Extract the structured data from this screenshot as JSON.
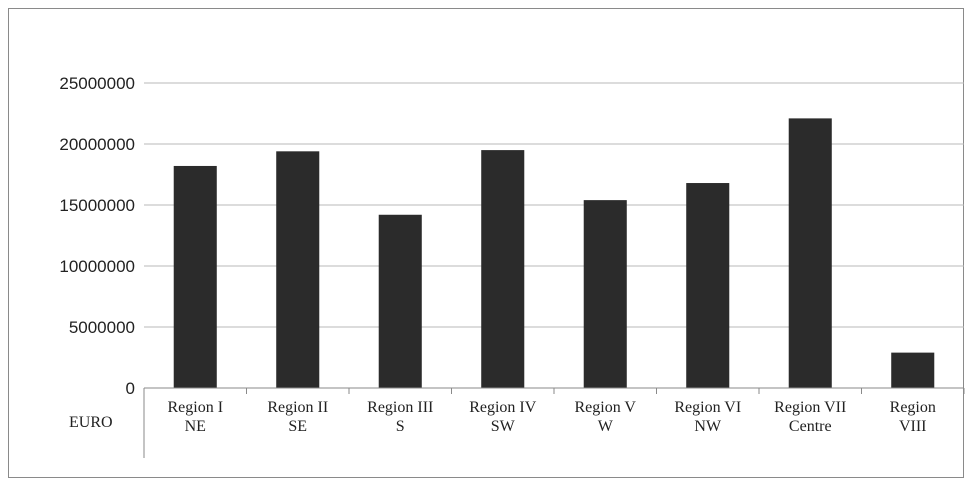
{
  "chart_data": {
    "type": "bar",
    "title": "",
    "xlabel": "",
    "ylabel": "",
    "unit_label": "EURO",
    "categories": [
      [
        "Region I",
        "NE"
      ],
      [
        "Region II",
        "SE"
      ],
      [
        "Region III",
        "S"
      ],
      [
        "Region IV",
        "SW"
      ],
      [
        "Region V",
        "W"
      ],
      [
        "Region VI",
        "NW"
      ],
      [
        "Region VII",
        "Centre"
      ],
      [
        "Region",
        "VIII"
      ]
    ],
    "values": [
      18200000,
      19400000,
      14200000,
      19500000,
      15400000,
      16800000,
      22100000,
      2900000
    ],
    "ylim": [
      0,
      25000000
    ],
    "yticks": [
      "0",
      "5000000",
      "10000000",
      "15000000",
      "20000000",
      "25000000"
    ],
    "grid": true,
    "bar_color": "#2b2b2b",
    "grid_color": "#b8b8b8"
  }
}
